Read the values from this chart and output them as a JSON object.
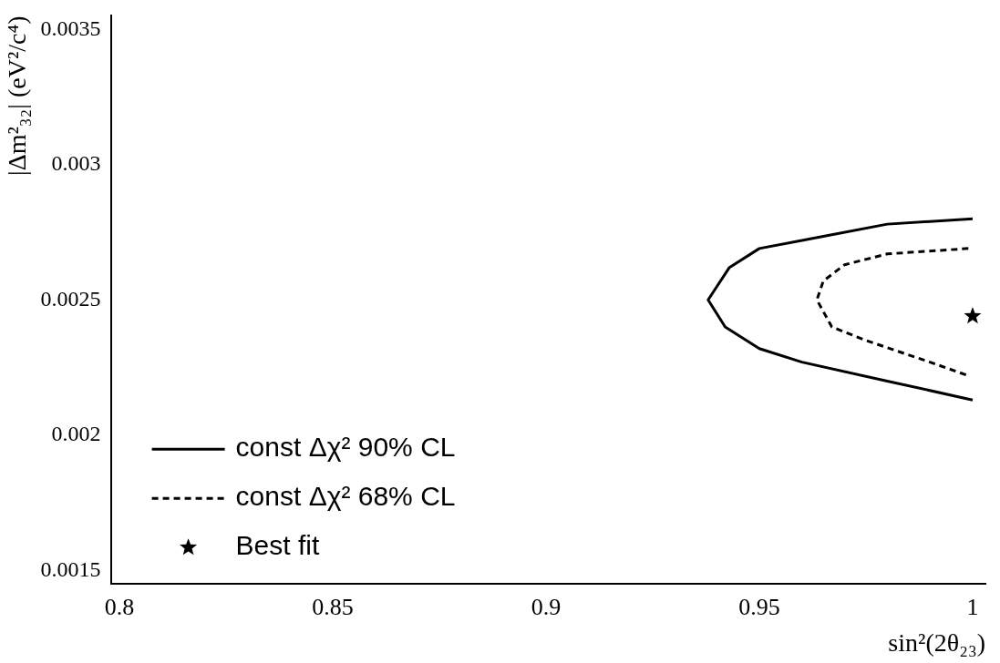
{
  "chart_data": {
    "type": "line",
    "xlabel": "sin²(2θ₂₃)",
    "ylabel": "|Δm²₃₂| (eV²/c⁴)",
    "xlim": [
      0.798,
      1.003
    ],
    "ylim": [
      0.00145,
      0.00355
    ],
    "xticks": [
      0.8,
      0.85,
      0.9,
      0.95,
      1
    ],
    "yticks": [
      0.0015,
      0.002,
      0.0025,
      0.003,
      0.0035
    ],
    "grid": false,
    "legend": "bottom left",
    "series": [
      {
        "name": "const Δχ² 90% CL",
        "type": "line",
        "line_style": "solid",
        "marker": "none",
        "color": "#000000",
        "x": [
          1.0,
          0.98,
          0.96,
          0.95,
          0.943,
          0.938,
          0.942,
          0.95,
          0.96,
          0.98,
          1.0
        ],
        "values": [
          0.0028,
          0.00278,
          0.00272,
          0.00269,
          0.00262,
          0.0025,
          0.0024,
          0.00232,
          0.00227,
          0.0022,
          0.00213
        ]
      },
      {
        "name": "const Δχ² 68% CL",
        "type": "line",
        "line_style": "dashed",
        "marker": "none",
        "color": "#000000",
        "x": [
          0.999,
          0.98,
          0.97,
          0.965,
          0.9635,
          0.967,
          0.975,
          0.99,
          0.999
        ],
        "values": [
          0.00269,
          0.00267,
          0.00263,
          0.00257,
          0.0025,
          0.0024,
          0.00235,
          0.00227,
          0.00222
        ]
      },
      {
        "name": "Best fit",
        "type": "scatter",
        "marker": "star",
        "color": "#000000",
        "x": [
          1.0
        ],
        "values": [
          0.00244
        ]
      }
    ]
  }
}
